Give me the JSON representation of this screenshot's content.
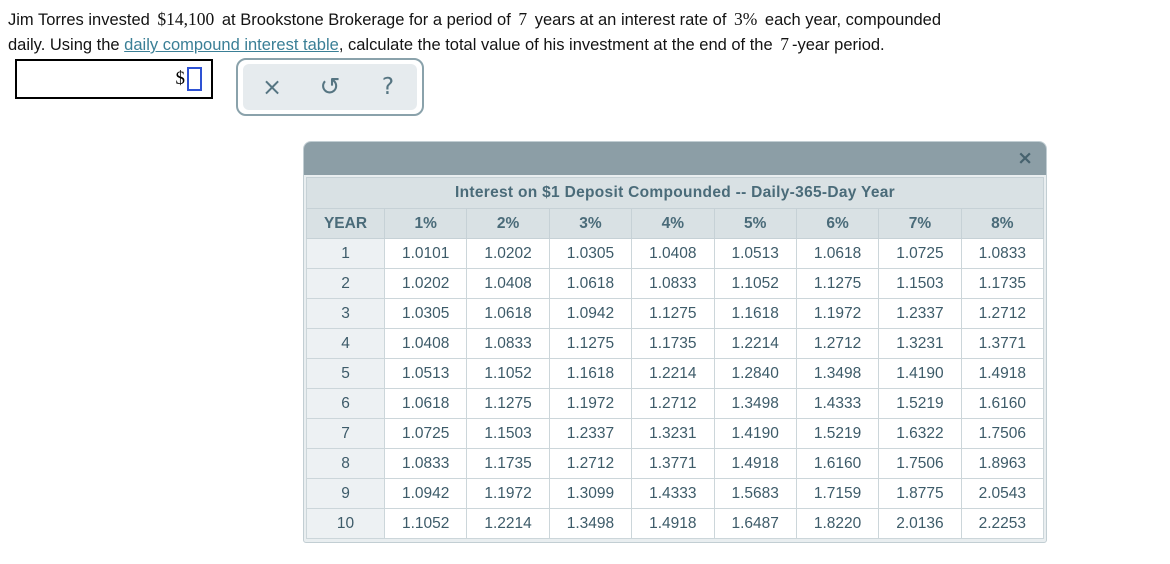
{
  "problem": {
    "seg1": "Jim Torres invested ",
    "amount": "$14,100",
    "seg2": " at Brookstone Brokerage for a period of ",
    "years": "7",
    "seg3": " years at an interest rate of ",
    "rate": "3%",
    "seg4": " each year, compounded",
    "seg5": "daily. Using the ",
    "link_text": "daily compound interest table",
    "seg6": ", calculate the total value of his investment at the end of the ",
    "years2": "7",
    "seg7": "-year period."
  },
  "answer": {
    "currency_symbol": "$",
    "value": "",
    "placeholder": ""
  },
  "toolbar": {
    "clear_icon": "×",
    "undo_icon": "↺",
    "help_icon": "?"
  },
  "dialog": {
    "close_icon": "×",
    "table": {
      "title": "Interest on $1 Deposit Compounded -- Daily-365-Day Year",
      "columns": [
        "YEAR",
        "1%",
        "2%",
        "3%",
        "4%",
        "5%",
        "6%",
        "7%",
        "8%"
      ],
      "rows": [
        [
          "1",
          "1.0101",
          "1.0202",
          "1.0305",
          "1.0408",
          "1.0513",
          "1.0618",
          "1.0725",
          "1.0833"
        ],
        [
          "2",
          "1.0202",
          "1.0408",
          "1.0618",
          "1.0833",
          "1.1052",
          "1.1275",
          "1.1503",
          "1.1735"
        ],
        [
          "3",
          "1.0305",
          "1.0618",
          "1.0942",
          "1.1275",
          "1.1618",
          "1.1972",
          "1.2337",
          "1.2712"
        ],
        [
          "4",
          "1.0408",
          "1.0833",
          "1.1275",
          "1.1735",
          "1.2214",
          "1.2712",
          "1.3231",
          "1.3771"
        ],
        [
          "5",
          "1.0513",
          "1.1052",
          "1.1618",
          "1.2214",
          "1.2840",
          "1.3498",
          "1.4190",
          "1.4918"
        ],
        [
          "6",
          "1.0618",
          "1.1275",
          "1.1972",
          "1.2712",
          "1.3498",
          "1.4333",
          "1.5219",
          "1.6160"
        ],
        [
          "7",
          "1.0725",
          "1.1503",
          "1.2337",
          "1.3231",
          "1.4190",
          "1.5219",
          "1.6322",
          "1.7506"
        ],
        [
          "8",
          "1.0833",
          "1.1735",
          "1.2712",
          "1.3771",
          "1.4918",
          "1.6160",
          "1.7506",
          "1.8963"
        ],
        [
          "9",
          "1.0942",
          "1.1972",
          "1.3099",
          "1.4333",
          "1.5683",
          "1.7159",
          "1.8775",
          "2.0543"
        ],
        [
          "10",
          "1.1052",
          "1.2214",
          "1.3498",
          "1.4918",
          "1.6487",
          "1.8220",
          "2.0136",
          "2.2253"
        ]
      ]
    }
  },
  "colors": {
    "link": "#3a7f96",
    "titlebar": "#8c9ea6",
    "header_bg": "#d9e1e4",
    "header_text": "#4a6b79",
    "cell_text": "#3d5b69",
    "cell_border": "#ccd6da",
    "year_col_bg": "#edf1f3",
    "toolbar_border": "#8aa2ab",
    "toolbar_inner_bg": "#e6ebee",
    "icon_color": "#567582",
    "input_border": "#2e52d4"
  }
}
